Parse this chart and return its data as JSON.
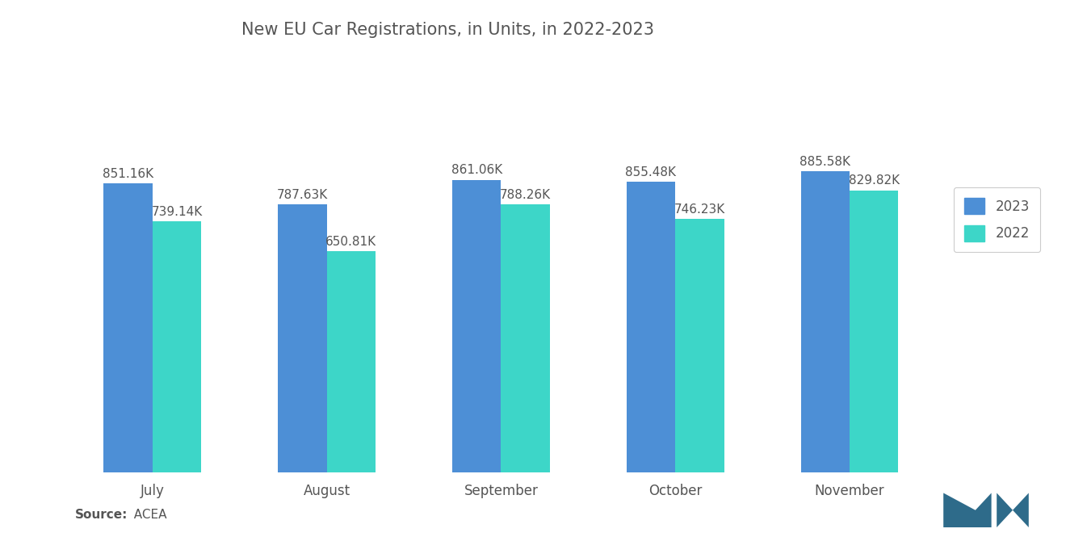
{
  "title": "New EU Car Registrations, in Units, in 2022-2023",
  "months": [
    "July",
    "August",
    "September",
    "October",
    "November"
  ],
  "values_2023": [
    851.16,
    787.63,
    861.06,
    855.48,
    885.58
  ],
  "values_2022": [
    739.14,
    650.81,
    788.26,
    746.23,
    829.82
  ],
  "color_2023": "#4D8FD6",
  "color_2022": "#3DD6C8",
  "bar_width": 0.28,
  "ylim": [
    0,
    1200
  ],
  "legend_labels": [
    "2023",
    "2022"
  ],
  "source_label_bold": "Source:",
  "source_label_regular": "  ACEA",
  "label_fontsize": 11,
  "title_fontsize": 15,
  "tick_fontsize": 12,
  "source_fontsize": 11,
  "background_color": "#FFFFFF",
  "text_color": "#555555"
}
